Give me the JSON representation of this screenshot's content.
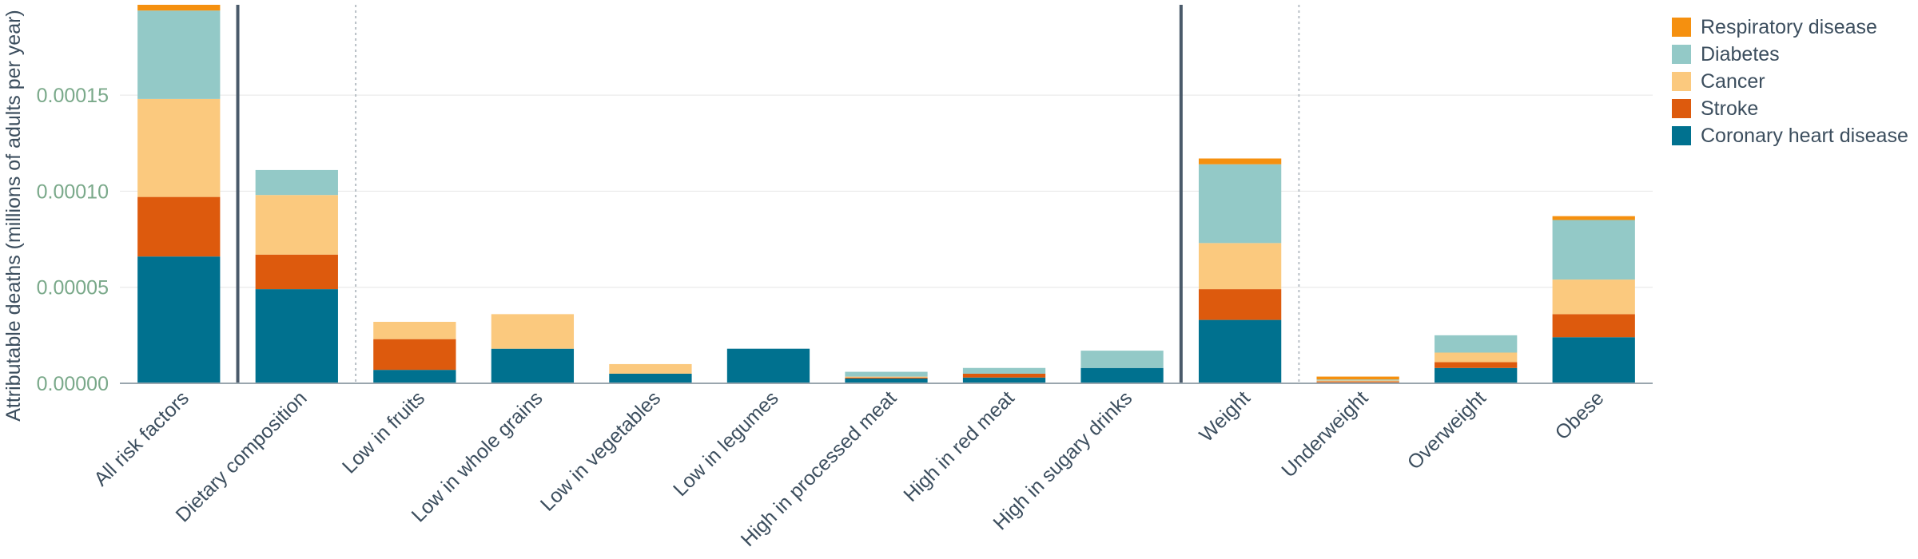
{
  "chart_data": {
    "type": "bar",
    "stacked": true,
    "ylabel": "Attributable deaths (millions of adults per year)",
    "ylim": [
      0,
      0.000197
    ],
    "yticks": [
      0,
      5e-05,
      0.0001,
      0.00015
    ],
    "ytick_labels": [
      "0.00000",
      "0.00005",
      "0.00010",
      "0.00015"
    ],
    "grid": true,
    "legend_position": "top-right",
    "categories": [
      "All risk factors",
      "Dietary composition",
      "Low in fruits",
      "Low in whole grains",
      "Low in vegetables",
      "Low in legumes",
      "High in processed meat",
      "High in red meat",
      "High in sugary drinks",
      "Weight",
      "Underweight",
      "Overweight",
      "Obese"
    ],
    "series": [
      {
        "name": "Coronary heart disease",
        "color": "#00718f",
        "values": [
          6.6e-05,
          4.9e-05,
          7e-06,
          1.8e-05,
          5e-06,
          1.8e-05,
          2.5e-06,
          3e-06,
          8e-06,
          3.3e-05,
          5e-07,
          8e-06,
          2.4e-05
        ]
      },
      {
        "name": "Stroke",
        "color": "#dd5a0d",
        "values": [
          3.1e-05,
          1.8e-05,
          1.6e-05,
          0,
          0,
          0,
          5e-07,
          2e-06,
          0,
          1.6e-05,
          5e-07,
          3e-06,
          1.2e-05
        ]
      },
      {
        "name": "Cancer",
        "color": "#fbc97e",
        "values": [
          5.1e-05,
          3.1e-05,
          9e-06,
          1.8e-05,
          5e-06,
          0,
          5e-07,
          0,
          0,
          2.4e-05,
          5e-07,
          5e-06,
          1.8e-05
        ]
      },
      {
        "name": "Diabetes",
        "color": "#93c9c7",
        "values": [
          4.6e-05,
          1.3e-05,
          0,
          0,
          0,
          0,
          2.5e-06,
          3e-06,
          9e-06,
          4.1e-05,
          5e-07,
          9e-06,
          3.1e-05
        ]
      },
      {
        "name": "Respiratory disease",
        "color": "#f5900f",
        "values": [
          3e-06,
          0,
          0,
          0,
          0,
          0,
          0,
          0,
          0,
          3e-06,
          1.5e-06,
          0,
          2e-06
        ]
      }
    ]
  },
  "colors": {
    "gridline": "#e6e6e6",
    "baseline": "#9aa6ae",
    "solid_separator": "#4a5a6a",
    "dotted_separator": "#b9c0c6"
  }
}
